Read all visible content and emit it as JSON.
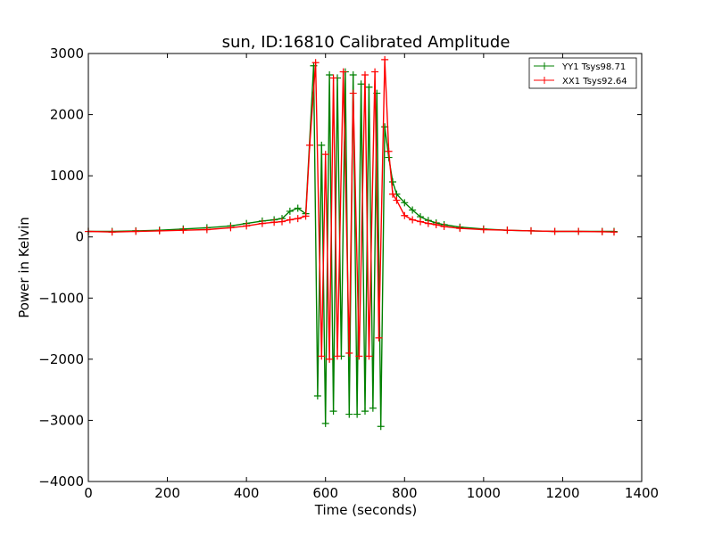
{
  "chart_data": {
    "type": "line",
    "title": "sun, ID:16810 Calibrated Amplitude",
    "xlabel": "Time (seconds)",
    "ylabel": "Power in Kelvin",
    "xlim": [
      0,
      1400
    ],
    "ylim": [
      -4000,
      3000
    ],
    "x_ticks": [
      0,
      200,
      400,
      600,
      800,
      1000,
      1200,
      1400
    ],
    "y_ticks": [
      -4000,
      -3000,
      -2000,
      -1000,
      0,
      1000,
      2000,
      3000
    ],
    "grid": false,
    "legend_position": "top-right",
    "series": [
      {
        "name": "YY1 Tsys98.71",
        "color": "#008000",
        "marker": "+",
        "x": [
          0,
          60,
          120,
          180,
          240,
          300,
          360,
          400,
          440,
          470,
          490,
          510,
          530,
          550,
          570,
          580,
          590,
          600,
          610,
          620,
          630,
          640,
          650,
          660,
          670,
          680,
          690,
          700,
          710,
          720,
          730,
          740,
          750,
          760,
          770,
          780,
          800,
          820,
          840,
          860,
          880,
          900,
          940,
          1000,
          1060,
          1120,
          1180,
          1240,
          1300,
          1330
        ],
        "y": [
          90,
          90,
          100,
          110,
          130,
          150,
          180,
          220,
          260,
          280,
          300,
          420,
          470,
          380,
          2800,
          -2600,
          1500,
          -3050,
          2650,
          -2850,
          2600,
          -1950,
          2700,
          -2900,
          2650,
          -2900,
          2500,
          -2850,
          2450,
          -2800,
          2350,
          -3100,
          1800,
          1300,
          900,
          700,
          560,
          440,
          330,
          270,
          230,
          200,
          160,
          130,
          110,
          100,
          90,
          90,
          90,
          90
        ]
      },
      {
        "name": "XX1 Tsys92.64",
        "color": "#ff0000",
        "marker": "+",
        "x": [
          0,
          60,
          120,
          180,
          240,
          300,
          360,
          400,
          440,
          470,
          490,
          510,
          530,
          550,
          560,
          575,
          590,
          600,
          610,
          620,
          630,
          645,
          660,
          670,
          685,
          700,
          710,
          725,
          735,
          750,
          760,
          770,
          780,
          800,
          820,
          840,
          860,
          880,
          900,
          940,
          1000,
          1060,
          1120,
          1180,
          1240,
          1300,
          1330
        ],
        "y": [
          90,
          80,
          90,
          100,
          110,
          120,
          150,
          180,
          220,
          240,
          250,
          280,
          300,
          340,
          1500,
          2850,
          -1950,
          1350,
          -2000,
          2600,
          -1950,
          2700,
          -1900,
          2350,
          -1950,
          2650,
          -1950,
          2700,
          -1650,
          2900,
          1400,
          700,
          600,
          350,
          280,
          250,
          220,
          200,
          170,
          140,
          120,
          110,
          100,
          90,
          90,
          85,
          80
        ]
      }
    ]
  }
}
